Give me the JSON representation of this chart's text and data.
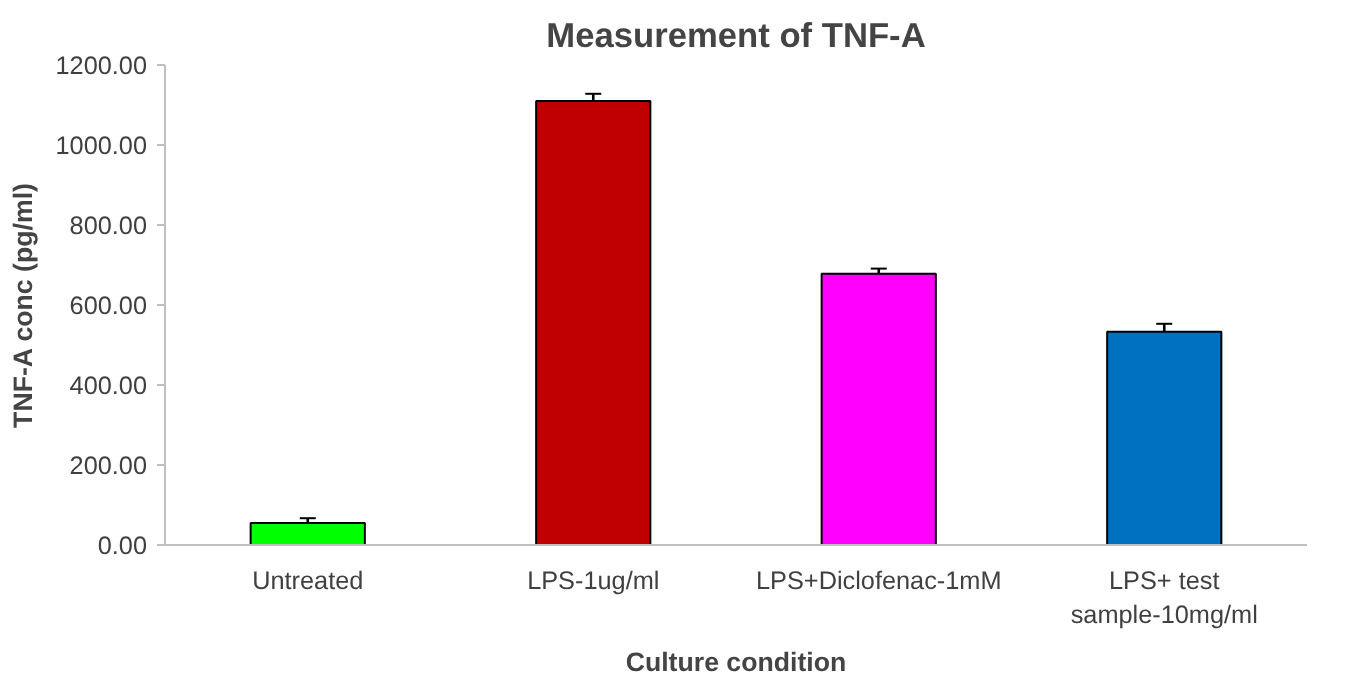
{
  "chart_data": {
    "type": "bar",
    "title": "Measurement of TNF-A",
    "xlabel": "Culture condition",
    "ylabel": "TNF-A conc (pg/ml)",
    "categories": [
      "Untreated",
      "LPS-1ug/ml",
      "LPS+Diclofenac-1mM",
      "LPS+ test sample-10mg/ml"
    ],
    "values": [
      55,
      1110,
      678,
      533
    ],
    "colors": [
      "#00ff00",
      "#c00000",
      "#ff00ff",
      "#0070c0"
    ],
    "errors": [
      12,
      18,
      13,
      20
    ],
    "ylim": [
      0,
      1200
    ],
    "yticks": [
      {
        "value": 0,
        "label": "0.00"
      },
      {
        "value": 200,
        "label": "200.00"
      },
      {
        "value": 400,
        "label": "400.00"
      },
      {
        "value": 600,
        "label": "600.00"
      },
      {
        "value": 800,
        "label": "800.00"
      },
      {
        "value": 1000,
        "label": "1000.00"
      },
      {
        "value": 1200,
        "label": "1200.00"
      }
    ],
    "grid": false
  }
}
